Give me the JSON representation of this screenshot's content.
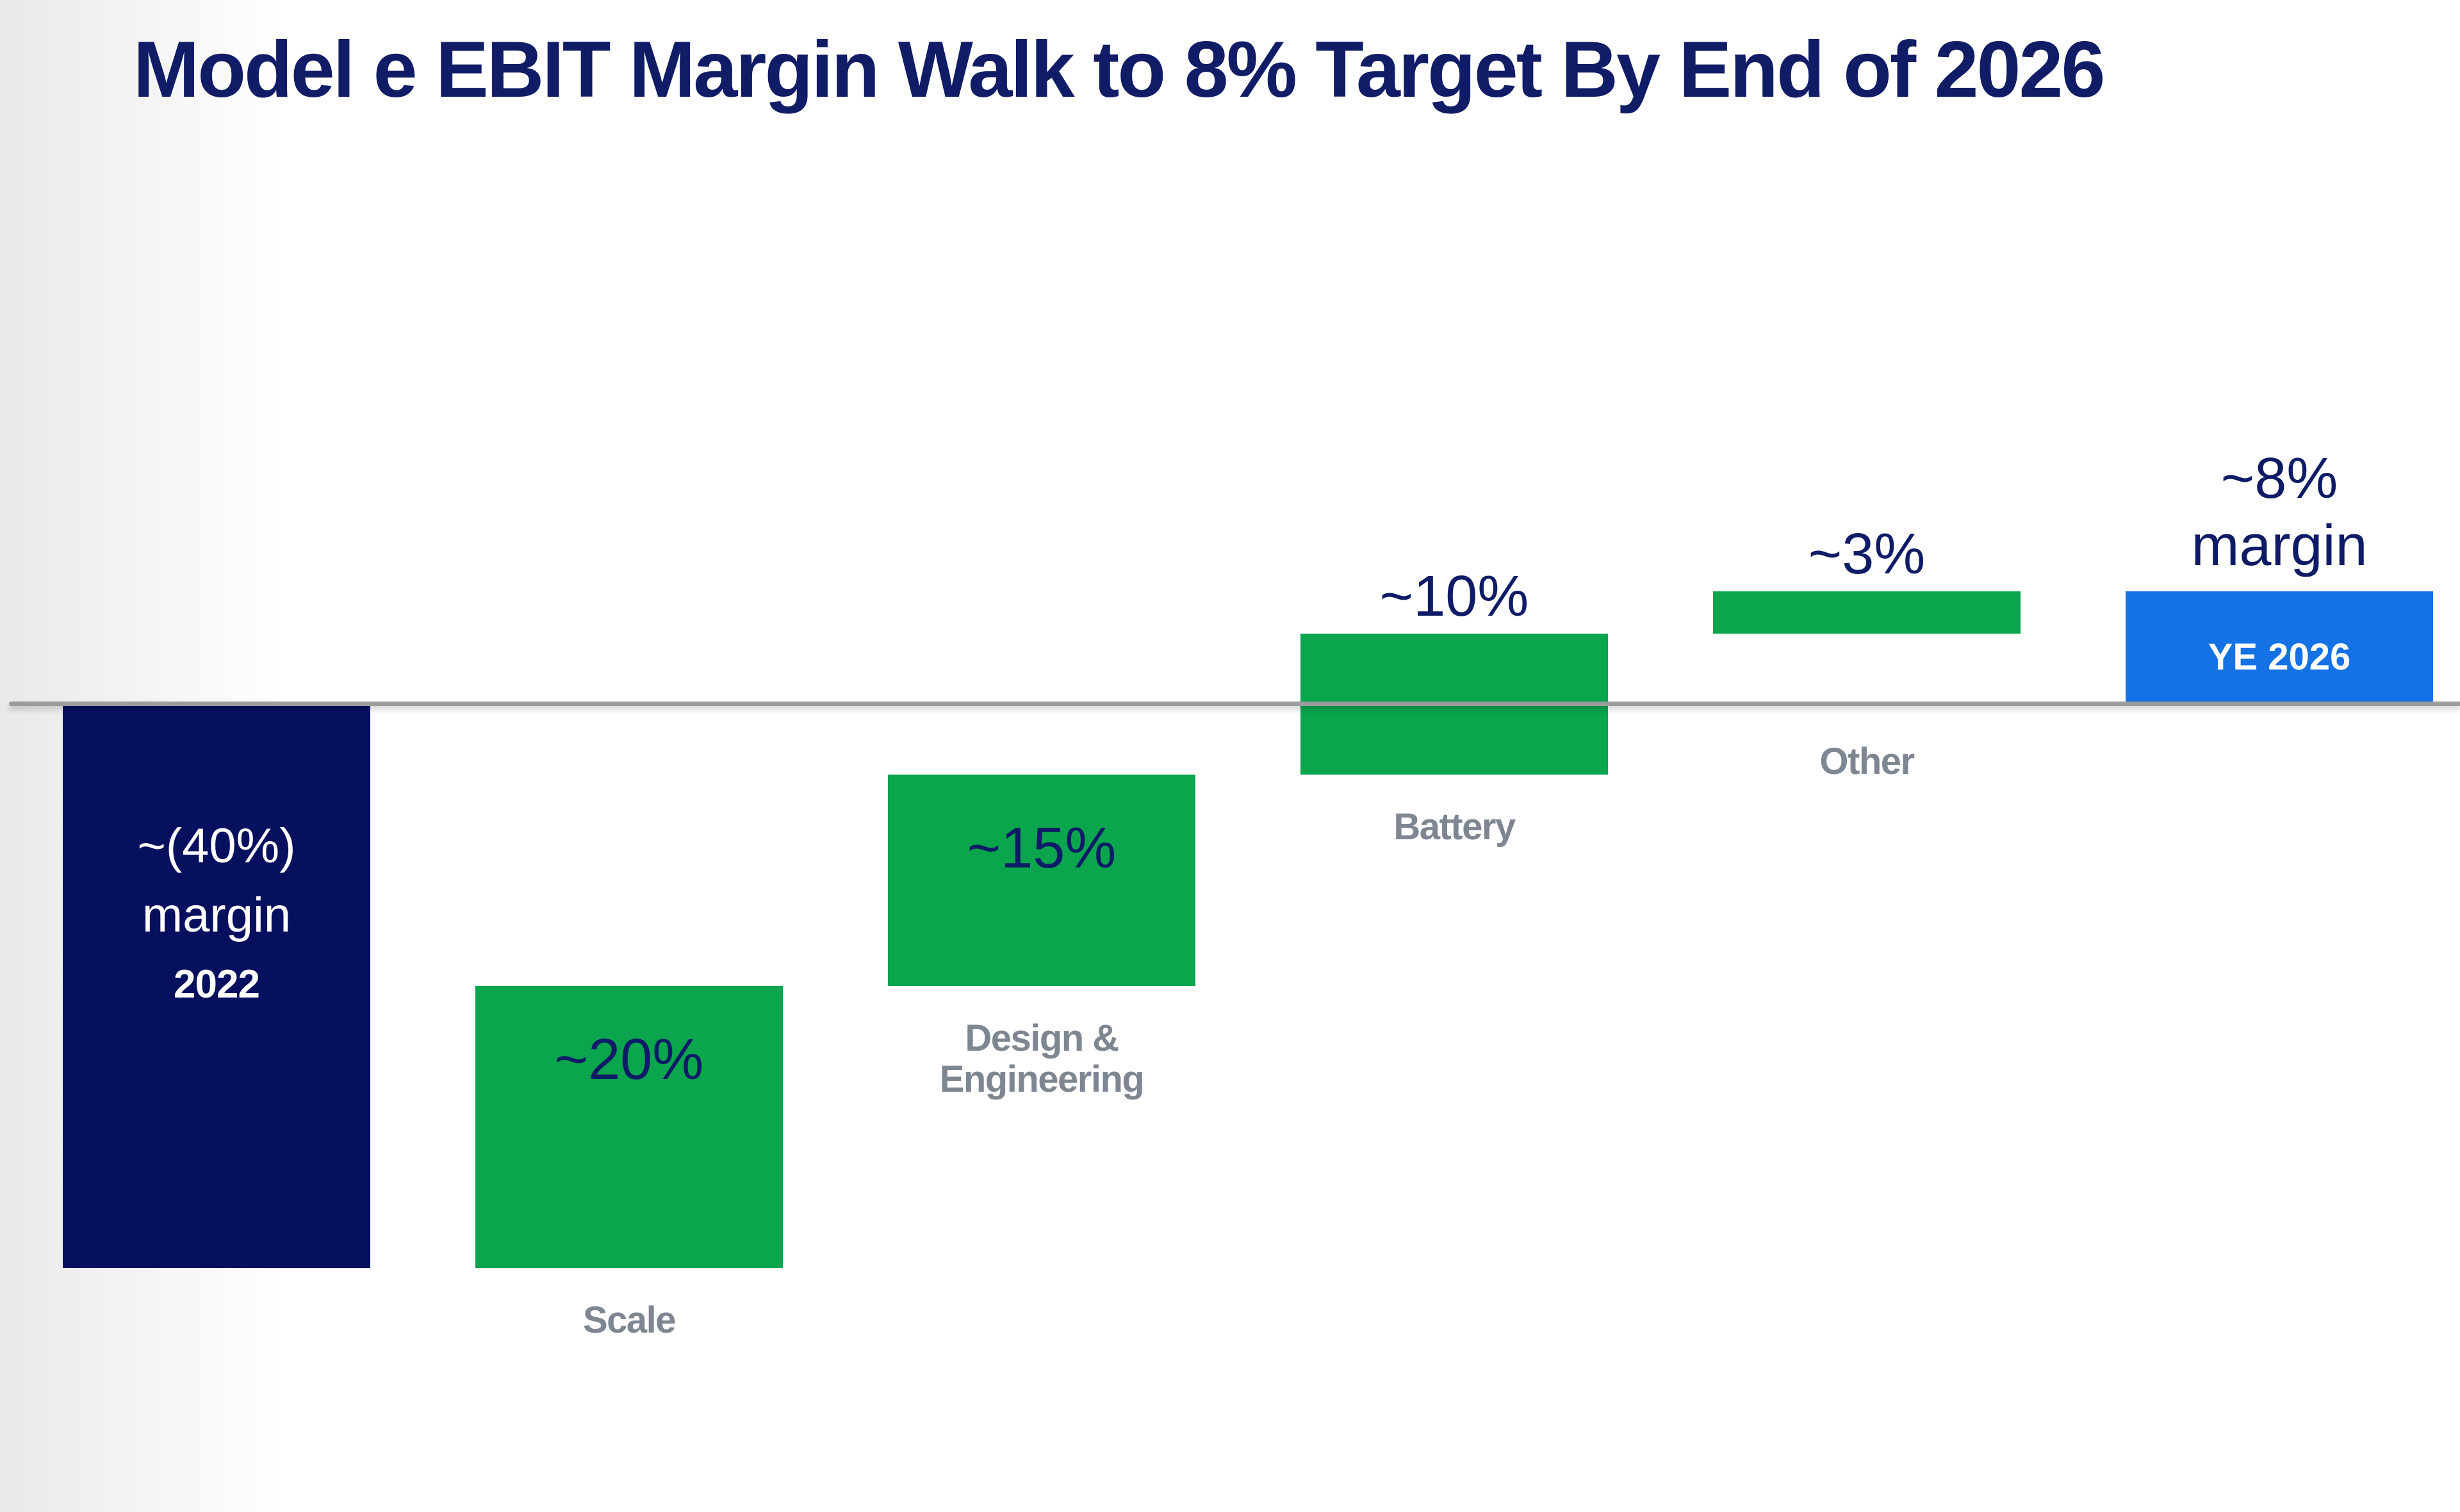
{
  "slide": {
    "title": "Model e EBIT Margin Walk to 8% Target By End of 2026"
  },
  "colors": {
    "title_navy": "#111C66",
    "bar_navy": "#07105E",
    "bar_green": "#0AA54D",
    "bar_blue": "#1472E4",
    "value_navy": "#0E1B66",
    "label_gray": "#7E8691",
    "baseline_gray": "#9C9C9C",
    "inbar_text_white": "#FFFFFF",
    "bg_left_edge": "#E9E9E9"
  },
  "chart_data": {
    "type": "waterfall",
    "title": "Model e EBIT Margin Walk to 8% Target By End of 2026",
    "unit": "EBIT margin, %",
    "baseline_value": 0,
    "ylim": [
      -42,
      12
    ],
    "grid": false,
    "legend": false,
    "axis_note": "single gray zero baseline across full width, no y-axis ticks",
    "bars": [
      {
        "category": "2022",
        "kind": "start",
        "start": 0,
        "end": -40,
        "delta": -40,
        "color": "navy",
        "value_label_lines": [
          "~(40%)",
          "margin",
          "2022"
        ],
        "value_label_placement": "inside-top",
        "category_label_lines": []
      },
      {
        "category": "Scale",
        "kind": "increase",
        "start": -40,
        "end": -20,
        "delta": 20,
        "color": "green",
        "value_label_lines": [
          "~20%"
        ],
        "value_label_placement": "inside-top",
        "category_label_lines": [
          "Scale"
        ]
      },
      {
        "category": "Design & Engineering",
        "kind": "increase",
        "start": -20,
        "end": -5,
        "delta": 15,
        "color": "green",
        "value_label_lines": [
          "~15%"
        ],
        "value_label_placement": "inside-top",
        "category_label_lines": [
          "Design &",
          "Engineering"
        ]
      },
      {
        "category": "Battery",
        "kind": "increase",
        "start": -5,
        "end": 5,
        "delta": 10,
        "color": "green",
        "value_label_lines": [
          "~10%"
        ],
        "value_label_placement": "above",
        "category_label_lines": [
          "Battery"
        ]
      },
      {
        "category": "Other",
        "kind": "increase",
        "start": 5,
        "end": 8,
        "delta": 3,
        "color": "green",
        "value_label_lines": [
          "~3%"
        ],
        "value_label_placement": "above",
        "category_label_lines": [
          "Other"
        ]
      },
      {
        "category": "YE 2026",
        "kind": "total",
        "start": 0,
        "end": 8,
        "delta": 8,
        "color": "blue",
        "value_label_lines": [
          "~8%",
          "margin"
        ],
        "value_label_placement": "above",
        "category_label_lines": [],
        "inner_label": "YE 2026"
      }
    ]
  }
}
